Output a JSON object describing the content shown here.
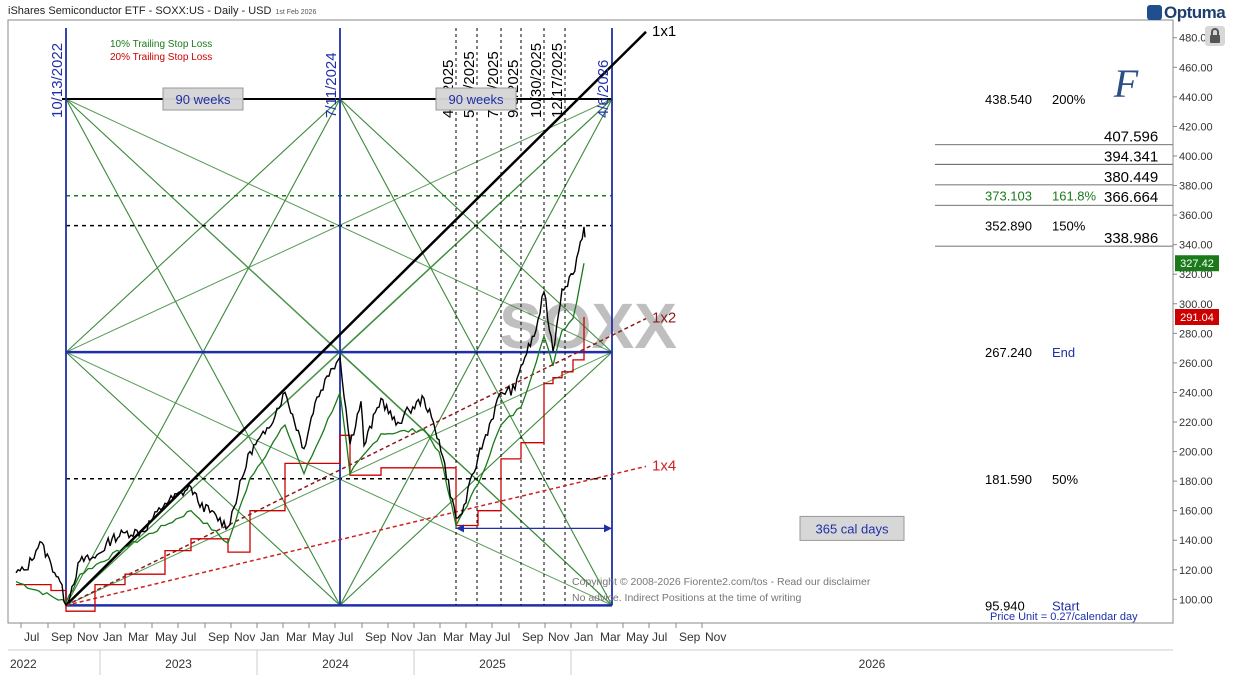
{
  "header": {
    "title": "iShares Semiconductor ETF - SOXX:US - Daily - USD",
    "date": "1st Feb 2026"
  },
  "brand": {
    "name": "Optuma",
    "logo_letter": "F"
  },
  "colors": {
    "price": "#000000",
    "stop10": "#1a7a1a",
    "stop20": "#cc0000",
    "blue": "#1f2fa8",
    "fan": "#3a8a3a",
    "dates": "#000000"
  },
  "chart_data": {
    "type": "line",
    "title": "iShares Semiconductor ETF - SOXX:US - Daily - USD",
    "watermark": "SOXX",
    "ylim": [
      84,
      492
    ],
    "y_ticks": [
      100,
      120,
      140,
      160,
      180,
      200,
      220,
      240,
      260,
      280,
      300,
      320,
      340,
      360,
      380,
      400,
      420,
      440,
      460,
      480
    ],
    "legend": [
      {
        "name": "10% Trailing Stop Loss",
        "color": "#1a7a1a"
      },
      {
        "name": "20% Trailing Stop Loss",
        "color": "#cc0000"
      }
    ],
    "x_month_labels": [
      "Jul",
      "Sep",
      "Nov",
      "Jan",
      "Mar",
      "May",
      "Jul",
      "Sep",
      "Nov",
      "Jan",
      "Mar",
      "May",
      "Jul",
      "Sep",
      "Nov",
      "Jan",
      "Mar",
      "May",
      "Jul",
      "Sep",
      "Nov",
      "Jan",
      "Mar",
      "May",
      "Jul",
      "Sep",
      "Nov"
    ],
    "x_year_labels": [
      "2022",
      "2023",
      "2024",
      "2025",
      "2026"
    ],
    "price_points": [
      [
        "2022-06-20",
        118
      ],
      [
        "2022-07-12",
        120
      ],
      [
        "2022-08-15",
        139
      ],
      [
        "2022-09-10",
        124
      ],
      [
        "2022-09-30",
        112
      ],
      [
        "2022-10-13",
        96
      ],
      [
        "2022-11-15",
        126
      ],
      [
        "2022-12-20",
        128
      ],
      [
        "2023-01-30",
        141
      ],
      [
        "2023-03-01",
        145
      ],
      [
        "2023-04-10",
        146
      ],
      [
        "2023-05-31",
        165
      ],
      [
        "2023-07-31",
        176
      ],
      [
        "2023-08-18",
        166
      ],
      [
        "2023-10-26",
        149
      ],
      [
        "2023-12-15",
        200
      ],
      [
        "2024-01-20",
        212
      ],
      [
        "2024-03-07",
        240
      ],
      [
        "2024-04-19",
        202
      ],
      [
        "2024-05-15",
        233
      ],
      [
        "2024-06-20",
        256
      ],
      [
        "2024-07-11",
        264
      ],
      [
        "2024-08-05",
        205
      ],
      [
        "2024-08-30",
        234
      ],
      [
        "2024-09-06",
        204
      ],
      [
        "2024-10-15",
        236
      ],
      [
        "2024-11-20",
        218
      ],
      [
        "2024-12-20",
        228
      ],
      [
        "2025-01-24",
        236
      ],
      [
        "2025-02-28",
        208
      ],
      [
        "2025-04-07",
        155
      ],
      [
        "2025-04-21",
        158
      ],
      [
        "2025-05-30",
        196
      ],
      [
        "2025-07-22",
        240
      ],
      [
        "2025-08-22",
        242
      ],
      [
        "2025-09-05",
        258
      ],
      [
        "2025-10-10",
        282
      ],
      [
        "2025-10-30",
        308
      ],
      [
        "2025-11-20",
        268
      ],
      [
        "2025-12-10",
        310
      ],
      [
        "2026-01-05",
        320
      ],
      [
        "2026-01-30",
        352
      ],
      [
        "2026-02-01",
        345
      ]
    ],
    "stop10_points": [
      [
        "2022-06-20",
        112
      ],
      [
        "2022-10-13",
        98
      ],
      [
        "2022-11-15",
        117
      ],
      [
        "2023-03-01",
        135
      ],
      [
        "2023-05-31",
        150
      ],
      [
        "2023-07-31",
        160
      ],
      [
        "2023-10-26",
        138
      ],
      [
        "2023-12-15",
        182
      ],
      [
        "2024-03-07",
        218
      ],
      [
        "2024-04-19",
        185
      ],
      [
        "2024-07-11",
        240
      ],
      [
        "2024-08-05",
        185
      ],
      [
        "2024-10-15",
        212
      ],
      [
        "2025-01-24",
        215
      ],
      [
        "2025-02-28",
        200
      ],
      [
        "2025-04-07",
        150
      ],
      [
        "2025-05-30",
        178
      ],
      [
        "2025-07-22",
        218
      ],
      [
        "2025-09-05",
        230
      ],
      [
        "2025-10-30",
        278
      ],
      [
        "2025-11-20",
        258
      ],
      [
        "2025-12-10",
        282
      ],
      [
        "2026-01-05",
        290
      ],
      [
        "2026-01-30",
        327.42
      ]
    ],
    "stop20_points": [
      [
        "2022-06-20",
        110
      ],
      [
        "2022-09-10",
        106
      ],
      [
        "2022-10-13",
        92
      ],
      [
        "2022-12-20",
        110
      ],
      [
        "2023-03-01",
        117
      ],
      [
        "2023-05-31",
        133
      ],
      [
        "2023-07-31",
        141
      ],
      [
        "2023-10-26",
        132
      ],
      [
        "2023-12-15",
        160
      ],
      [
        "2024-03-07",
        192
      ],
      [
        "2024-07-11",
        211
      ],
      [
        "2024-08-05",
        184
      ],
      [
        "2024-10-15",
        189
      ],
      [
        "2025-02-28",
        189
      ],
      [
        "2025-04-07",
        150
      ],
      [
        "2025-05-30",
        160
      ],
      [
        "2025-07-22",
        195
      ],
      [
        "2025-09-05",
        206
      ],
      [
        "2025-10-30",
        246
      ],
      [
        "2025-11-20",
        250
      ],
      [
        "2025-12-10",
        254
      ],
      [
        "2026-01-05",
        262
      ],
      [
        "2026-01-30",
        291.04
      ]
    ],
    "last_price": "327.42",
    "last_stop20": "291.04",
    "y_axis_badges": [
      {
        "value": 327.42,
        "label": "327.42",
        "color": "#1a7a1a"
      },
      {
        "value": 291.04,
        "label": "291.04",
        "color": "#cc0000"
      }
    ],
    "vertical_lines": [
      {
        "date": "2022-10-13",
        "label": "10/13/2022",
        "color": "#1f2fa8",
        "style": "solid"
      },
      {
        "date": "2024-07-11",
        "label": "7/11/2024",
        "color": "#1f2fa8",
        "style": "solid"
      },
      {
        "date": "2026-04-06",
        "label": "4/6/2026",
        "color": "#1f2fa8",
        "style": "solid"
      },
      {
        "date": "2025-04-07",
        "label": "4/7/2025",
        "color": "#000000",
        "style": "dashed"
      },
      {
        "date": "2025-05-27",
        "label": "5/27/2025",
        "color": "#000000",
        "style": "dashed"
      },
      {
        "date": "2025-07-22",
        "label": "7/22/2025",
        "color": "#000000",
        "style": "dashed"
      },
      {
        "date": "2025-09-05",
        "label": "9/5/2025",
        "color": "#000000",
        "style": "dashed"
      },
      {
        "date": "2025-10-30",
        "label": "10/30/2025",
        "color": "#000000",
        "style": "dashed"
      },
      {
        "date": "2025-12-17",
        "label": "12/17/2025",
        "color": "#000000",
        "style": "dashed"
      }
    ],
    "box": {
      "start_date": "2022-10-13",
      "end_date": "2026-04-06",
      "low": 95.94,
      "mid": 267.24,
      "high": 438.54
    },
    "levels": [
      {
        "value": 438.54,
        "label": "438.540",
        "pct": "200%",
        "style": "solid",
        "color": "#000000"
      },
      {
        "value": 407.596,
        "label": "407.596",
        "style": "thin",
        "color": "#000000"
      },
      {
        "value": 394.341,
        "label": "394.341",
        "style": "thin",
        "color": "#000000"
      },
      {
        "value": 380.449,
        "label": "380.449",
        "style": "thin",
        "color": "#000000"
      },
      {
        "value": 373.103,
        "label": "373.103",
        "pct": "161.8%",
        "style": "dashed",
        "color": "#1a7a1a"
      },
      {
        "value": 366.664,
        "label": "366.664",
        "style": "thin",
        "color": "#000000"
      },
      {
        "value": 352.89,
        "label": "352.890",
        "pct": "150%",
        "style": "dashed",
        "color": "#000000"
      },
      {
        "value": 338.986,
        "label": "338.986",
        "style": "thin",
        "color": "#000000"
      },
      {
        "value": 267.24,
        "label": "267.240",
        "pct": "End",
        "style": "blue",
        "color": "#1f2fa8"
      },
      {
        "value": 181.59,
        "label": "181.590",
        "pct": "50%",
        "style": "dashed",
        "color": "#000000"
      },
      {
        "value": 95.94,
        "label": "95.940",
        "pct": "Start",
        "style": "blue",
        "color": "#1f2fa8"
      }
    ],
    "gann_lines": [
      {
        "label": "1x1",
        "from": [
          "2022-10-13",
          95.94
        ],
        "to": [
          "2026-04-06",
          438.54
        ],
        "ext": [
          "2026-06-24",
          484
        ],
        "color": "#000000"
      },
      {
        "label": "1x2",
        "from": [
          "2022-10-13",
          95.94
        ],
        "to": [
          "2026-04-06",
          267.24
        ],
        "ext": [
          "2026-06-24",
          290
        ],
        "color": "#8b1a1a"
      },
      {
        "label": "1x4",
        "from": [
          "2022-10-13",
          95.94
        ],
        "to": [
          "2026-04-06",
          181.59
        ],
        "ext": [
          "2026-06-24",
          190
        ],
        "color": "#cc2222"
      }
    ],
    "annotations": {
      "weeks_label": "90 weeks",
      "days_label": "365 cal days",
      "price_unit": "Price Unit = 0.27/calendar day",
      "copyright": "Copyright © 2008-2026 Fiorente2.com/tos - Read our disclaimer",
      "disclaimer": "No advice. Indirect Positions at the time of writing"
    }
  }
}
